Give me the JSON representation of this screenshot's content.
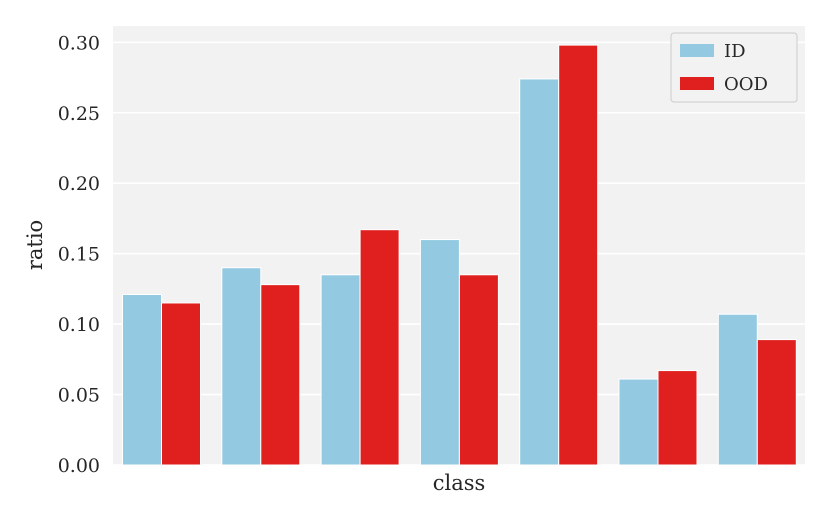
{
  "chart_data": {
    "type": "bar",
    "title": "",
    "xlabel": "class",
    "ylabel": "ratio",
    "ylim": [
      0,
      0.31
    ],
    "yticks": [
      "0.00",
      "0.05",
      "0.10",
      "0.15",
      "0.20",
      "0.25",
      "0.30"
    ],
    "ytick_values": [
      0,
      0.05,
      0.1,
      0.15,
      0.2,
      0.25,
      0.3
    ],
    "categories": [
      "",
      "",
      "",
      "",
      "",
      "",
      ""
    ],
    "grid": true,
    "legend_position": "top-right",
    "series": [
      {
        "name": "ID",
        "color": "#93cae1",
        "values": [
          0.121,
          0.14,
          0.135,
          0.16,
          0.274,
          0.061,
          0.107
        ]
      },
      {
        "name": "OOD",
        "color": "#e01f1f",
        "values": [
          0.115,
          0.128,
          0.167,
          0.135,
          0.298,
          0.067,
          0.089
        ]
      }
    ],
    "plot_background": "#f2f2f2",
    "grid_color": "#ffffff"
  }
}
